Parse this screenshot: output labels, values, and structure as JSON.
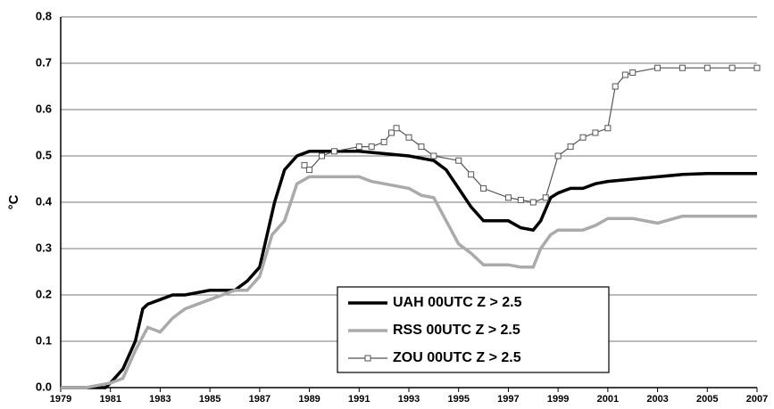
{
  "chart_data": {
    "type": "line",
    "y_label": "°C",
    "xlim": [
      1979,
      2007
    ],
    "xticks": [
      1979,
      1981,
      1983,
      1985,
      1987,
      1989,
      1991,
      1993,
      1995,
      1997,
      1999,
      2001,
      2003,
      2005,
      2007
    ],
    "ylim": [
      0,
      0.8
    ],
    "yticks": [
      {
        "value": 0,
        "label": "0.0"
      },
      0.1,
      0.2,
      0.3,
      0.4,
      0.5,
      0.6,
      0.7,
      0.8
    ],
    "grid": true,
    "legend": "bottom",
    "series": [
      {
        "name": "UAH 00UTC Z > 2.5",
        "color": "#000000",
        "marker": false,
        "x": [
          1979,
          1980,
          1980.8,
          1981,
          1981.5,
          1982,
          1982.3,
          1982.5,
          1983,
          1983.5,
          1984,
          1985,
          1986,
          1986.5,
          1987,
          1987.3,
          1987.6,
          1988,
          1988.5,
          1989,
          1990,
          1991,
          1992,
          1993,
          1994,
          1994.5,
          1995,
          1995.5,
          1996,
          1997,
          1997.5,
          1998,
          1998.3,
          1998.7,
          1999,
          1999.5,
          2000,
          2000.5,
          2001,
          2002,
          2003,
          2004,
          2005,
          2006,
          2007
        ],
        "values": [
          0,
          0,
          0,
          0.01,
          0.04,
          0.1,
          0.17,
          0.18,
          0.19,
          0.2,
          0.2,
          0.21,
          0.21,
          0.23,
          0.26,
          0.33,
          0.4,
          0.47,
          0.5,
          0.51,
          0.51,
          0.51,
          0.505,
          0.5,
          0.49,
          0.47,
          0.43,
          0.39,
          0.36,
          0.36,
          0.345,
          0.34,
          0.36,
          0.41,
          0.42,
          0.43,
          0.43,
          0.44,
          0.445,
          0.45,
          0.455,
          0.46,
          0.462,
          0.462,
          0.462
        ]
      },
      {
        "name": "RSS 00UTC Z > 2.5",
        "color": "#aaaaaa",
        "marker": false,
        "x": [
          1979,
          1980,
          1981,
          1981.5,
          1982,
          1982.5,
          1983,
          1983.5,
          1984,
          1985,
          1985.5,
          1986,
          1986.5,
          1987,
          1987.5,
          1988,
          1988.5,
          1989,
          1990,
          1991,
          1991.5,
          1992,
          1993,
          1993.5,
          1994,
          1994.5,
          1995,
          1995.5,
          1996,
          1997,
          1997.5,
          1998,
          1998.3,
          1998.7,
          1999,
          2000,
          2000.5,
          2001,
          2002,
          2003,
          2004,
          2005,
          2006,
          2007
        ],
        "values": [
          0,
          0,
          0.01,
          0.02,
          0.08,
          0.13,
          0.12,
          0.15,
          0.17,
          0.19,
          0.2,
          0.21,
          0.21,
          0.24,
          0.33,
          0.36,
          0.44,
          0.455,
          0.455,
          0.455,
          0.445,
          0.44,
          0.43,
          0.415,
          0.41,
          0.36,
          0.31,
          0.29,
          0.265,
          0.265,
          0.26,
          0.26,
          0.3,
          0.33,
          0.34,
          0.34,
          0.35,
          0.365,
          0.365,
          0.355,
          0.37,
          0.37,
          0.37,
          0.37
        ]
      },
      {
        "name": "ZOU 00UTC Z > 2.5",
        "color": "#555555",
        "marker": true,
        "x": [
          1988.8,
          1989,
          1989.5,
          1990,
          1991,
          1991.5,
          1992,
          1992.3,
          1992.5,
          1993,
          1993.5,
          1994,
          1995,
          1995.5,
          1996,
          1997,
          1997.5,
          1998,
          1998.5,
          1999,
          1999.5,
          2000,
          2000.5,
          2001,
          2001.3,
          2001.7,
          2002,
          2003,
          2004,
          2005,
          2006,
          2007
        ],
        "values": [
          0.48,
          0.47,
          0.5,
          0.51,
          0.52,
          0.52,
          0.53,
          0.55,
          0.56,
          0.54,
          0.52,
          0.5,
          0.49,
          0.46,
          0.43,
          0.41,
          0.405,
          0.4,
          0.41,
          0.5,
          0.52,
          0.54,
          0.55,
          0.56,
          0.65,
          0.675,
          0.68,
          0.69,
          0.69,
          0.69,
          0.69,
          0.69
        ]
      }
    ]
  }
}
